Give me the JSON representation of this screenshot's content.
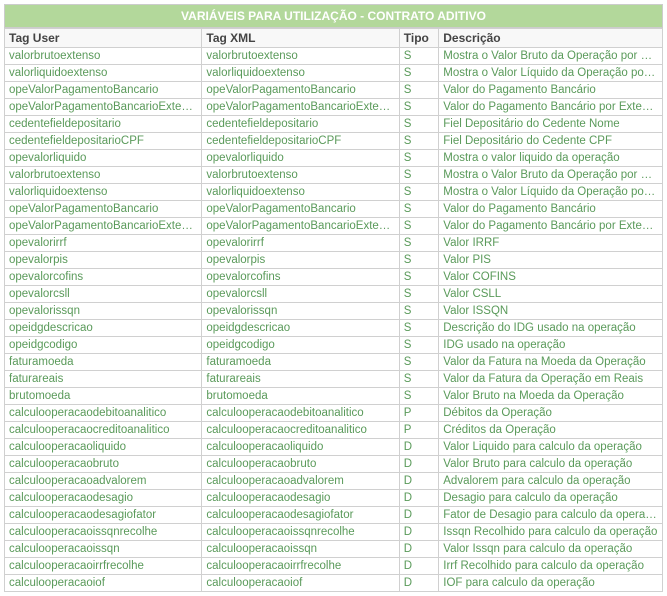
{
  "title": "VARIÁVEIS PARA UTILIZAÇÃO - CONTRATO ADITIVO",
  "columns": [
    "Tag User",
    "Tag XML",
    "Tipo",
    "Descrição"
  ],
  "rows": [
    [
      "valorbrutoextenso",
      "valorbrutoextenso",
      "S",
      "Mostra o Valor Bruto da Operação por Extenso"
    ],
    [
      "valorliquidoextenso",
      "valorliquidoextenso",
      "S",
      "Mostra o Valor Líquido da Operação por Extenso"
    ],
    [
      "opeValorPagamentoBancario",
      "opeValorPagamentoBancario",
      "S",
      "Valor do Pagamento Bancário"
    ],
    [
      "opeValorPagamentoBancarioExtenso",
      "opeValorPagamentoBancarioExtenso",
      "S",
      "Valor do Pagamento Bancário por Extenso"
    ],
    [
      "cedentefieldepositario",
      "cedentefieldepositario",
      "S",
      "Fiel Depositário do Cedente Nome"
    ],
    [
      "cedentefieldepositarioCPF",
      "cedentefieldepositarioCPF",
      "S",
      "Fiel Depositário do Cedente CPF"
    ],
    [
      "opevalorliquido",
      "opevalorliquido",
      "S",
      "Mostra o valor liquido da operação"
    ],
    [
      "valorbrutoextenso",
      "valorbrutoextenso",
      "S",
      "Mostra o Valor Bruto da Operação por Extenso"
    ],
    [
      "valorliquidoextenso",
      "valorliquidoextenso",
      "S",
      "Mostra o Valor Líquido da Operação por Extenso"
    ],
    [
      "opeValorPagamentoBancario",
      "opeValorPagamentoBancario",
      "S",
      "Valor do Pagamento Bancário"
    ],
    [
      "opeValorPagamentoBancarioExtenso",
      "opeValorPagamentoBancarioExtenso",
      "S",
      "Valor do Pagamento Bancário por Extenso"
    ],
    [
      "opevalorirrf",
      "opevalorirrf",
      "S",
      "Valor IRRF"
    ],
    [
      "opevalorpis",
      "opevalorpis",
      "S",
      "Valor PIS"
    ],
    [
      "opevalorcofins",
      "opevalorcofins",
      "S",
      "Valor COFINS"
    ],
    [
      "opevalorcsll",
      "opevalorcsll",
      "S",
      "Valor CSLL"
    ],
    [
      "opevalorissqn",
      "opevalorissqn",
      "S",
      "Valor ISSQN"
    ],
    [
      "opeidgdescricao",
      "opeidgdescricao",
      "S",
      "Descrição do IDG usado na operação"
    ],
    [
      "opeidgcodigo",
      "opeidgcodigo",
      "S",
      "IDG usado na operação"
    ],
    [
      "faturamoeda",
      "faturamoeda",
      "S",
      "Valor da Fatura na Moeda da Operação"
    ],
    [
      "faturareais",
      "faturareais",
      "S",
      "Valor da Fatura da Operação em Reais"
    ],
    [
      "brutomoeda",
      "brutomoeda",
      "S",
      "Valor Bruto na Moeda da Operação"
    ],
    [
      "calculooperacaodebitoanalitico",
      "calculooperacaodebitoanalitico",
      "P",
      "Débitos da Operação"
    ],
    [
      "calculooperacaocreditoanalitico",
      "calculooperacaocreditoanalitico",
      "P",
      "Créditos da Operação"
    ],
    [
      "calculooperacaoliquido",
      "calculooperacaoliquido",
      "D",
      "Valor Liquido para calculo da operação"
    ],
    [
      "calculooperacaobruto",
      "calculooperacaobruto",
      "D",
      "Valor Bruto para calculo da operação"
    ],
    [
      "calculooperacaoadvalorem",
      "calculooperacaoadvalorem",
      "D",
      "Advalorem para calculo da operação"
    ],
    [
      "calculooperacaodesagio",
      "calculooperacaodesagio",
      "D",
      "Desagio para calculo da operação"
    ],
    [
      "calculooperacaodesagiofator",
      "calculooperacaodesagiofator",
      "D",
      "Fator de Desagio para calculo da operação"
    ],
    [
      "calculooperacaoissqnrecolhe",
      "calculooperacaoissqnrecolhe",
      "D",
      "Issqn Recolhido para calculo da operação"
    ],
    [
      "calculooperacaoissqn",
      "calculooperacaoissqn",
      "D",
      "Valor Issqn para calculo da operação"
    ],
    [
      "calculooperacaoirrfrecolhe",
      "calculooperacaoirrfrecolhe",
      "D",
      "Irrf Recolhido para calculo da operação"
    ],
    [
      "calculooperacaoiof",
      "calculooperacaoiof",
      "D",
      "IOF para calculo da operação"
    ]
  ]
}
